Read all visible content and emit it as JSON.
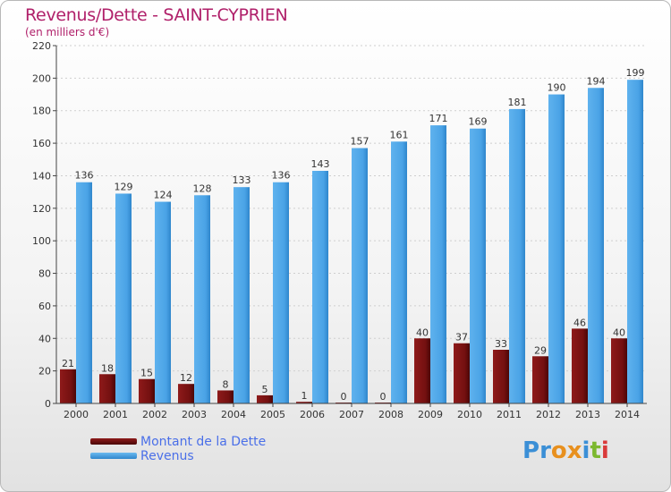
{
  "title": "Revenus/Dette - SAINT-CYPRIEN",
  "subtitle": "(en milliers d'€)",
  "legend": {
    "debt_label": "Montant de la Dette",
    "revenue_label": "Revenus"
  },
  "logo": {
    "text": "Proxiti",
    "letters": [
      {
        "ch": "P",
        "color": "#3b8fd6"
      },
      {
        "ch": "r",
        "color": "#3b8fd6"
      },
      {
        "ch": "o",
        "color": "#e8901e"
      },
      {
        "ch": "x",
        "color": "#e8901e"
      },
      {
        "ch": "i",
        "color": "#3b8fd6"
      },
      {
        "ch": "t",
        "color": "#7cb82f"
      },
      {
        "ch": "i",
        "color": "#d93a3a"
      }
    ]
  },
  "colors": {
    "debt": "#7a1010",
    "debt_dark": "#4a0606",
    "revenue": "#4aa3e6",
    "revenue_dark": "#2f86cc",
    "title": "#b0206a",
    "legend_text": "#4a6fe8"
  },
  "chart_data": {
    "type": "bar",
    "title": "Revenus/Dette - SAINT-CYPRIEN",
    "subtitle": "(en milliers d'€)",
    "categories": [
      "2000",
      "2001",
      "2002",
      "2003",
      "2004",
      "2005",
      "2006",
      "2007",
      "2008",
      "2009",
      "2010",
      "2011",
      "2012",
      "2013",
      "2014"
    ],
    "series": [
      {
        "name": "Montant de la Dette",
        "values": [
          21,
          18,
          15,
          12,
          8,
          5,
          1,
          0,
          0,
          40,
          37,
          33,
          29,
          46,
          40
        ]
      },
      {
        "name": "Revenus",
        "values": [
          136,
          129,
          124,
          128,
          133,
          136,
          143,
          157,
          161,
          171,
          169,
          181,
          190,
          194,
          199
        ]
      }
    ],
    "ylim": [
      0,
      220
    ],
    "yticks": [
      0,
      20,
      40,
      60,
      80,
      100,
      120,
      140,
      160,
      180,
      200,
      220
    ],
    "grid": true,
    "legend_position": "bottom-left"
  }
}
